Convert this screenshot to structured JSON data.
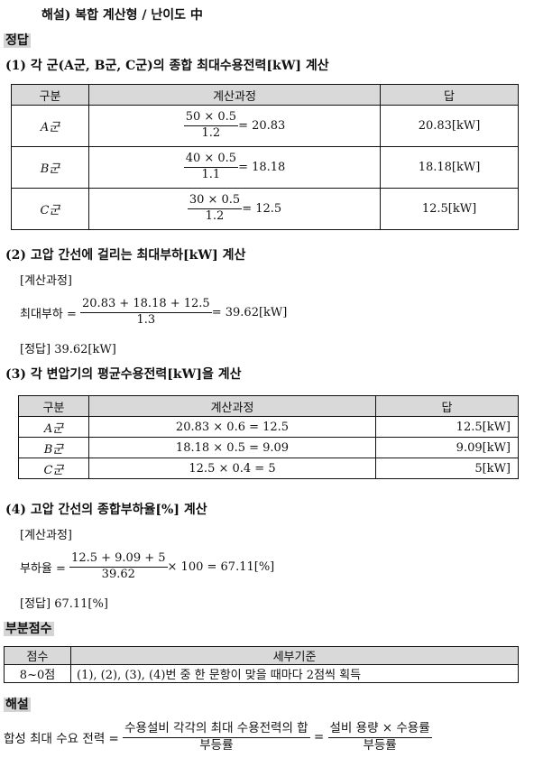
{
  "header": "해설) 복합 계산형 / 난이도 中",
  "answer_heading": "정답",
  "q1": {
    "title": "(1) 각 군(A군, B군, C군)의 종합 최대수용전력[kW] 계산",
    "columns": [
      "구분",
      "계산과정",
      "답"
    ],
    "rows": [
      {
        "group": "A군",
        "num": "50 × 0.5",
        "den": "1.2",
        "result": "= 20.83",
        "answer": "20.83[kW]"
      },
      {
        "group": "B군",
        "num": "40 × 0.5",
        "den": "1.1",
        "result": "= 18.18",
        "answer": "18.18[kW]"
      },
      {
        "group": "C군",
        "num": "30 × 0.5",
        "den": "1.2",
        "result": "= 12.5",
        "answer": "12.5[kW]"
      }
    ]
  },
  "q2": {
    "title": "(2) 고압 간선에 걸리는 최대부하[kW] 계산",
    "calc_label": "[계산과정]",
    "lhs": "최대부하 =",
    "num": "20.83 + 18.18 + 12.5",
    "den": "1.3",
    "result": "= 39.62[kW]",
    "answer": "[정답] 39.62[kW]"
  },
  "q3": {
    "title": "(3) 각 변압기의 평균수용전력[kW]을 계산",
    "columns": [
      "구분",
      "계산과정",
      "답"
    ],
    "rows": [
      {
        "group": "A군",
        "calc": "20.83 × 0.6 = 12.5",
        "answer": "12.5[kW]"
      },
      {
        "group": "B군",
        "calc": "18.18 × 0.5 = 9.09",
        "answer": "9.09[kW]"
      },
      {
        "group": "C군",
        "calc": "12.5 × 0.4 = 5",
        "answer": "5[kW]"
      }
    ]
  },
  "q4": {
    "title": "(4) 고압 간선의 종합부하율[%] 계산",
    "calc_label": "[계산과정]",
    "lhs": "부하율 =",
    "num": "12.5 + 9.09 + 5",
    "den": "39.62",
    "result": "× 100 = 67.11[%]",
    "answer": "[정답] 67.11[%]"
  },
  "partial": {
    "heading": "부분점수",
    "columns": [
      "점수",
      "세부기준"
    ],
    "score": "8~0점",
    "criteria": "(1), (2), (3), (4)번 중 한 문항이 맞을 때마다 2점씩 획득"
  },
  "explanation": {
    "heading": "해설",
    "lhs": "합성 최대 수요 전력 =",
    "num1": "수용설비 각각의 최대 수용전력의 합",
    "den1": "부등률",
    "eq": "=",
    "num2": "설비 용량 × 수용률",
    "den2": "부등률"
  }
}
